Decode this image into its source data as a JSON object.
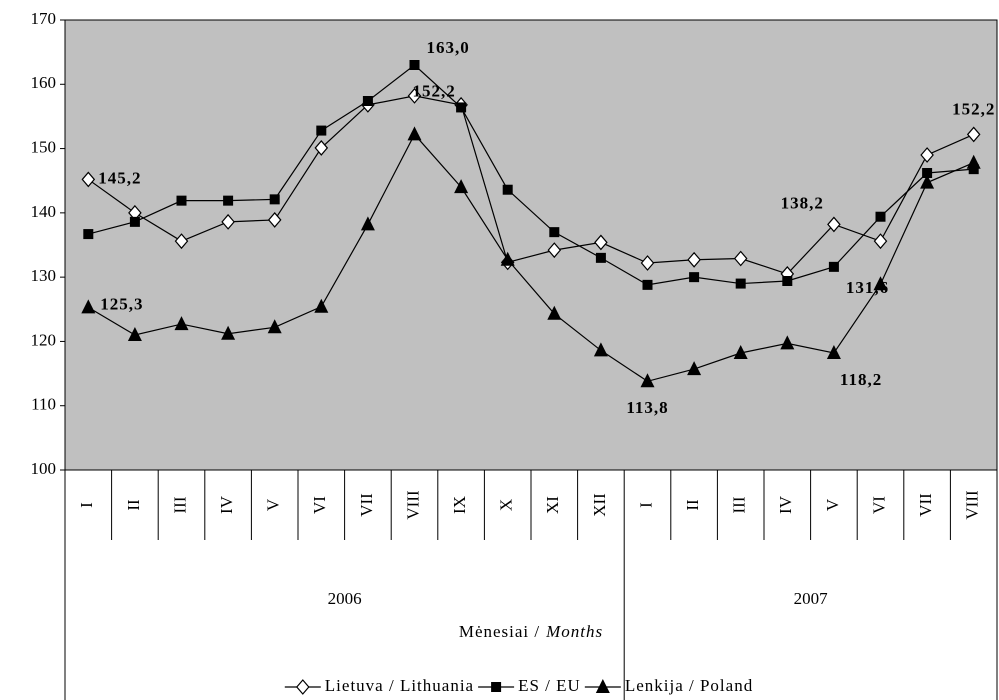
{
  "chart_data": {
    "type": "line",
    "groups": [
      {
        "label": "2006",
        "categories": [
          "I",
          "II",
          "III",
          "IV",
          "V",
          "VI",
          "VII",
          "VIII",
          "IX",
          "X",
          "XI",
          "XII"
        ]
      },
      {
        "label": "2007",
        "categories": [
          "I",
          "II",
          "III",
          "IV",
          "V",
          "VI",
          "VII",
          "VIII"
        ]
      }
    ],
    "xlabel": [
      "Mėnesiai /",
      "Months"
    ],
    "ylim": [
      100,
      170
    ],
    "yticks": [
      100,
      110,
      120,
      130,
      140,
      150,
      160,
      170
    ],
    "background": "#c0c0c0",
    "series": [
      {
        "name": "Lietuva / Lithuania",
        "color": "#000000",
        "marker": "diamond",
        "values": [
          145.2,
          140,
          135.6,
          138.6,
          138.9,
          150.1,
          156.8,
          158.2,
          156.8,
          132.3,
          134.2,
          135.4,
          132.2,
          132.7,
          132.9,
          130.5,
          138.2,
          135.6,
          149,
          152.2
        ],
        "value_labels": [
          "145,2",
          null,
          null,
          null,
          null,
          null,
          null,
          null,
          null,
          null,
          null,
          null,
          null,
          null,
          null,
          null,
          "138,2",
          null,
          null,
          "152,2"
        ]
      },
      {
        "name": "ES / EU",
        "color": "#000000",
        "marker": "square",
        "values": [
          136.7,
          138.6,
          141.9,
          141.9,
          142.1,
          152.8,
          157.4,
          163.0,
          156.4,
          143.6,
          137,
          133,
          128.8,
          130,
          129,
          129.4,
          131.6,
          139.4,
          146.2,
          146.8
        ],
        "value_labels": [
          null,
          null,
          null,
          null,
          null,
          null,
          null,
          "163,0",
          null,
          null,
          null,
          null,
          null,
          null,
          null,
          null,
          "131,6",
          null,
          null,
          null
        ]
      },
      {
        "name": "Lenkija / Poland",
        "color": "#000000",
        "marker": "triangle",
        "values": [
          125.3,
          121,
          122.7,
          121.2,
          122.2,
          125.4,
          138.2,
          152.2,
          144,
          132.7,
          124.3,
          118.6,
          113.8,
          115.7,
          118.2,
          119.7,
          118.2,
          128.9,
          144.7,
          147.8
        ],
        "value_labels": [
          "125,3",
          null,
          null,
          null,
          null,
          null,
          null,
          "152,2",
          null,
          null,
          null,
          null,
          "113,8",
          null,
          null,
          null,
          "118,2",
          null,
          null,
          null
        ]
      }
    ]
  }
}
